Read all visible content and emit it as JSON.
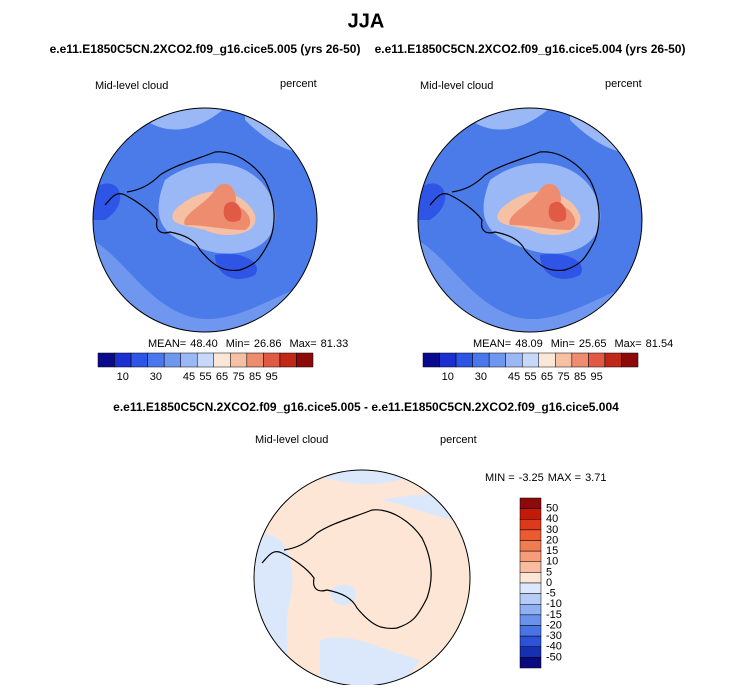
{
  "title": "JJA",
  "panels": [
    {
      "subtitle": "e.e11.E1850C5CN.2XCO2.f09_g16.cice5.005 (yrs 26-50)",
      "left_label": "Mid-level cloud",
      "right_label": "percent",
      "stats": [
        {
          "label": "MEAN=",
          "value": "48.40"
        },
        {
          "label": "Min=",
          "value": "26.86"
        },
        {
          "label": "Max=",
          "value": "81.33"
        }
      ]
    },
    {
      "subtitle": "e.e11.E1850C5CN.2XCO2.f09_g16.cice5.004 (yrs 26-50)",
      "left_label": "Mid-level cloud",
      "right_label": "percent",
      "stats": [
        {
          "label": "MEAN=",
          "value": "48.09"
        },
        {
          "label": "Min=",
          "value": "25.65"
        },
        {
          "label": "Max=",
          "value": "81.54"
        }
      ]
    }
  ],
  "colorbar": {
    "labels": [
      10,
      30,
      45,
      55,
      65,
      75,
      85,
      95
    ],
    "colors": [
      "#0a0a8c",
      "#1c2fd0",
      "#2f55e6",
      "#4a78ec",
      "#6f97f0",
      "#9ab8f5",
      "#c6d9fa",
      "#fbe7d8",
      "#f6c0a4",
      "#ee8c70",
      "#e05a45",
      "#c02818",
      "#8c0a0a"
    ]
  },
  "diff": {
    "subtitle": "e.e11.E1850C5CN.2XCO2.f09_g16.cice5.005 - e.e11.E1850C5CN.2XCO2.f09_g16.cice5.004",
    "left_label": "Mid-level cloud",
    "right_label": "percent",
    "stats": [
      {
        "label": "MIN =",
        "value": "-3.25"
      },
      {
        "label": "MAX =",
        "value": "3.71"
      }
    ],
    "colorbar": {
      "labels": [
        50,
        40,
        30,
        20,
        15,
        10,
        5,
        0,
        -5,
        -10,
        -15,
        -20,
        -30,
        -40,
        -50
      ],
      "colors": [
        "#8c0a0a",
        "#c41a0a",
        "#dc3a1a",
        "#ec5a30",
        "#f27c52",
        "#f69c78",
        "#f9bca0",
        "#fde6d6",
        "#dbe8fb",
        "#b5cdf6",
        "#8fb0f1",
        "#6a92ec",
        "#4a74e6",
        "#2b52d8",
        "#1530b0",
        "#0a0a80"
      ]
    }
  }
}
